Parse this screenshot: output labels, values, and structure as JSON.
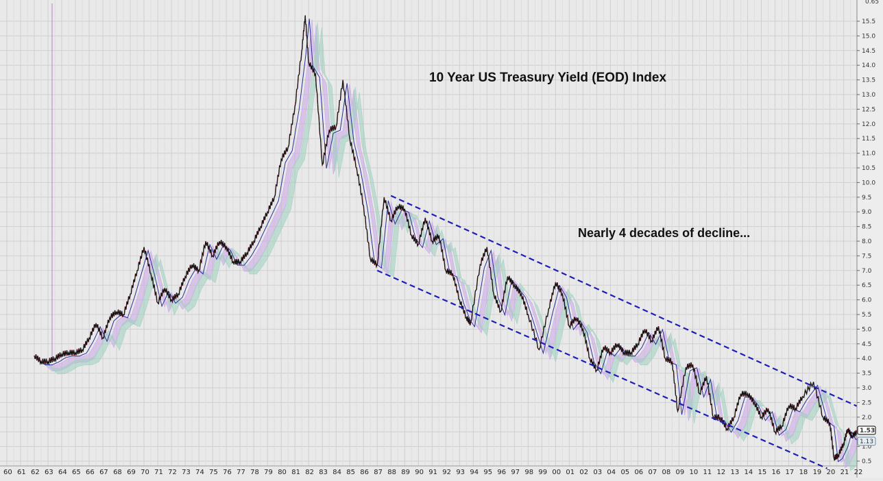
{
  "chart_data": {
    "type": "line",
    "title": "10 Year US Treasury Yield (EOD) Index",
    "annotation": "Nearly 4 decades of decline...",
    "xlabel": "",
    "ylabel": "",
    "x_tick_labels": [
      "60",
      "61",
      "62",
      "63",
      "64",
      "65",
      "66",
      "67",
      "68",
      "69",
      "70",
      "71",
      "72",
      "73",
      "74",
      "75",
      "76",
      "77",
      "78",
      "79",
      "80",
      "81",
      "82",
      "83",
      "84",
      "85",
      "86",
      "87",
      "88",
      "89",
      "90",
      "91",
      "92",
      "93",
      "94",
      "95",
      "96",
      "97",
      "98",
      "99",
      "00",
      "01",
      "02",
      "03",
      "04",
      "05",
      "06",
      "07",
      "08",
      "09",
      "10",
      "11",
      "12",
      "13",
      "14",
      "15",
      "16",
      "17",
      "18",
      "19",
      "20",
      "21",
      "22"
    ],
    "y_tick_labels": [
      "0.5",
      "1.0",
      "1.5",
      "2.0",
      "2.5",
      "3.0",
      "3.5",
      "4.0",
      "4.5",
      "5.0",
      "5.5",
      "6.0",
      "6.5",
      "7.0",
      "7.5",
      "8.0",
      "8.5",
      "9.0",
      "9.5",
      "10.0",
      "10.5",
      "11.0",
      "11.5",
      "12.0",
      "12.5",
      "13.0",
      "13.5",
      "14.0",
      "14.5",
      "15.0",
      "15.5"
    ],
    "y_top_label": "0.65",
    "ylim": [
      0.35,
      16.0
    ],
    "xlim": [
      1960.0,
      2022.8
    ],
    "grid": true,
    "price_labels": [
      "1.53",
      "1.13"
    ],
    "series": [
      {
        "values_x": [
          1962.0,
          1962.5,
          1963.0,
          1963.5,
          1964.0,
          1964.5,
          1965.0,
          1965.5,
          1966.0,
          1966.5,
          1967.0,
          1967.5,
          1968.0,
          1968.5,
          1969.0,
          1969.5,
          1970.0,
          1970.5,
          1971.0,
          1971.5,
          1972.0,
          1972.5,
          1973.0,
          1973.5,
          1974.0,
          1974.5,
          1975.0,
          1975.5,
          1976.0,
          1976.5,
          1977.0,
          1977.5,
          1978.0,
          1978.5,
          1979.0,
          1979.5,
          1980.0,
          1980.5,
          1981.0,
          1981.5,
          1981.75,
          1982.0,
          1982.5,
          1983.0,
          1983.5,
          1984.0,
          1984.5,
          1985.0,
          1985.5,
          1986.0,
          1986.5,
          1987.0,
          1987.5,
          1988.0,
          1988.5,
          1989.0,
          1989.5,
          1990.0,
          1990.5,
          1991.0,
          1991.5,
          1992.0,
          1992.5,
          1993.0,
          1993.5,
          1993.8,
          1994.5,
          1995.0,
          1995.5,
          1996.0,
          1996.5,
          1997.0,
          1997.5,
          1998.0,
          1998.8,
          1999.5,
          2000.0,
          2000.5,
          2001.0,
          2001.5,
          2002.0,
          2002.5,
          2003.0,
          2003.5,
          2004.0,
          2004.5,
          2005.0,
          2005.5,
          2006.0,
          2006.5,
          2007.0,
          2007.5,
          2008.0,
          2008.5,
          2008.9,
          2009.5,
          2010.0,
          2010.5,
          2011.0,
          2011.5,
          2012.0,
          2012.5,
          2013.0,
          2013.5,
          2014.0,
          2014.5,
          2015.0,
          2015.5,
          2016.0,
          2016.5,
          2017.0,
          2017.5,
          2018.0,
          2018.8,
          2019.5,
          2020.0,
          2020.3,
          2020.6,
          2021.0,
          2021.3,
          2021.6,
          2022.0
        ],
        "values_y": [
          4.1,
          3.9,
          3.9,
          4.0,
          4.15,
          4.2,
          4.2,
          4.3,
          4.7,
          5.2,
          4.7,
          5.4,
          5.6,
          5.5,
          6.2,
          7.0,
          7.8,
          6.9,
          5.9,
          6.4,
          6.0,
          6.2,
          6.8,
          7.2,
          7.0,
          8.0,
          7.5,
          8.0,
          7.8,
          7.3,
          7.3,
          7.6,
          8.0,
          8.5,
          9.0,
          9.5,
          10.8,
          11.2,
          12.6,
          14.5,
          15.7,
          14.1,
          13.7,
          10.6,
          11.8,
          11.9,
          13.5,
          11.5,
          10.5,
          9.2,
          7.4,
          7.2,
          9.5,
          8.7,
          9.2,
          9.1,
          8.2,
          7.9,
          8.8,
          8.0,
          8.2,
          7.0,
          6.9,
          6.0,
          5.4,
          5.2,
          7.2,
          7.8,
          6.2,
          5.6,
          6.8,
          6.5,
          6.2,
          5.5,
          4.3,
          5.7,
          6.6,
          6.2,
          5.1,
          5.4,
          5.0,
          4.0,
          3.6,
          4.4,
          4.2,
          4.5,
          4.2,
          4.2,
          4.5,
          5.0,
          4.6,
          5.1,
          4.0,
          3.9,
          2.2,
          3.7,
          3.8,
          2.8,
          3.4,
          2.0,
          2.0,
          1.6,
          2.0,
          2.8,
          2.8,
          2.5,
          2.0,
          2.3,
          1.5,
          1.7,
          2.4,
          2.3,
          2.7,
          3.2,
          2.0,
          1.8,
          0.6,
          0.7,
          1.1,
          1.6,
          1.35,
          1.5
        ]
      }
    ],
    "channel_lines": [
      {
        "x": [
          1988.0,
          2022.8
        ],
        "y": [
          9.55,
          2.2
        ]
      },
      {
        "x": [
          1987.0,
          2019.8
        ],
        "y": [
          7.0,
          0.25
        ]
      }
    ]
  }
}
